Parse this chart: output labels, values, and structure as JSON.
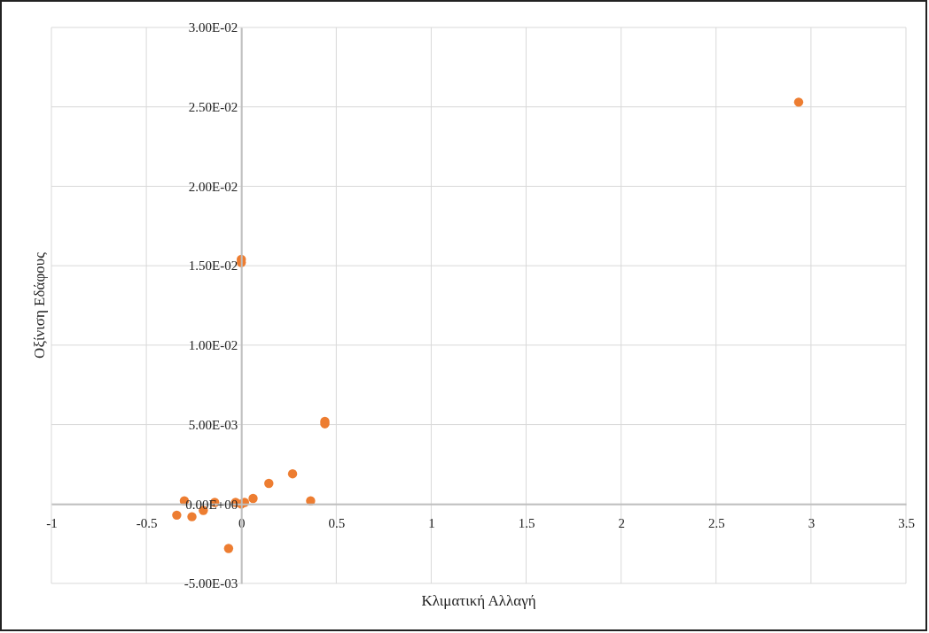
{
  "chart_data": {
    "type": "scatter",
    "xlabel": "Κλιματική Αλλαγή",
    "ylabel": "Οξίνιση Εδάφους",
    "x": [
      -0.34,
      -0.3,
      -0.26,
      -0.2,
      -0.14,
      -0.067,
      -0.03,
      0,
      0.017,
      0.062,
      0.145,
      0.27,
      0.365,
      0.44,
      0.44,
      0,
      0,
      2.935
    ],
    "series": [
      {
        "color": "#ed7d31",
        "values": [
          -0.0007,
          0.0002,
          -0.0008,
          -0.0004,
          0.0001,
          -0.0028,
          0.0001,
          0,
          0.0001,
          0.00035,
          0.0013,
          0.0019,
          0.0002,
          0.0052,
          0.00505,
          0.0154,
          0.0152,
          0.0253
        ]
      }
    ],
    "xlim": [
      -1,
      3.5
    ],
    "xticks": [
      -1,
      -0.5,
      0,
      0.5,
      1,
      1.5,
      2,
      2.5,
      3,
      3.5
    ],
    "ylim": [
      -0.005,
      0.03
    ],
    "yticks": [
      {
        "value": -0.005,
        "label": "-5.00E-03"
      },
      {
        "value": 0,
        "label": "0.00E+00"
      },
      {
        "value": 0.005,
        "label": "5.00E-03"
      },
      {
        "value": 0.01,
        "label": "1.00E-02"
      },
      {
        "value": 0.015,
        "label": "1.50E-02"
      },
      {
        "value": 0.02,
        "label": "2.00E-02"
      },
      {
        "value": 0.025,
        "label": "2.50E-02"
      },
      {
        "value": 0.03,
        "label": "3.00E-02"
      }
    ],
    "grid": true,
    "marker": "circle"
  }
}
